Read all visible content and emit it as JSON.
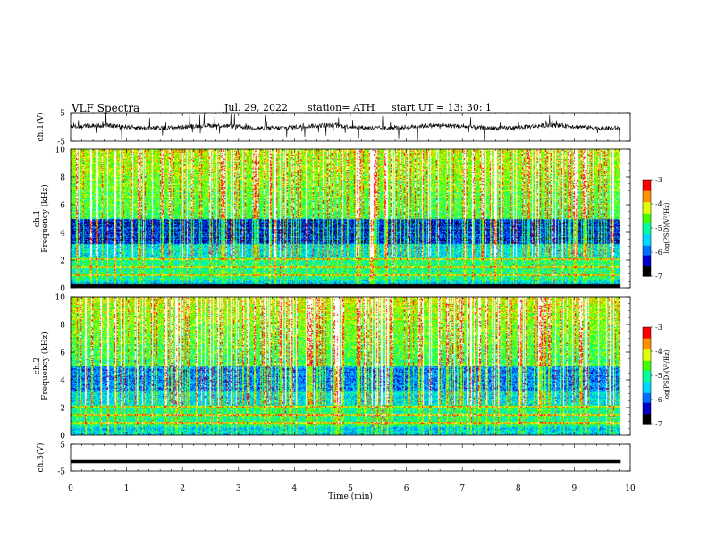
{
  "header": {
    "title": "VLF  Spectra",
    "date": "Jul.  29, 2022",
    "station": "station= ATH",
    "start": "start  UT  =    13: 30: 1"
  },
  "colors": {
    "scale": [
      "#000000",
      "#0000c8",
      "#0070ff",
      "#00d8ff",
      "#00ffa0",
      "#40ff00",
      "#e0ff00",
      "#ff9000",
      "#ff0000",
      "#ffffff"
    ]
  },
  "chart_data": [
    {
      "type": "line",
      "panel": "ch1-waveform",
      "ylabel": "ch.1(V)",
      "ylim": [
        -5,
        5
      ],
      "yticks": [
        "5",
        "-5"
      ],
      "xlim": [
        0,
        10
      ],
      "data_end_min": 9.83,
      "description_series": "raw waveform, noisy around 0 V"
    },
    {
      "type": "heatmap",
      "panel": "ch1-spectrogram",
      "ylabel": "ch.1\nFrequency  (kHz)",
      "ylim": [
        0,
        10
      ],
      "yticks": [
        "0",
        "2",
        "4",
        "6",
        "8",
        "10"
      ],
      "xlim": [
        0,
        10
      ],
      "colorbar": {
        "label": "log(PSD)(V²/Hz)",
        "range": [
          -7,
          -3
        ],
        "ticks": [
          "-3",
          "-4",
          "-5",
          "-6",
          "-7"
        ]
      }
    },
    {
      "type": "heatmap",
      "panel": "ch2-spectrogram",
      "ylabel": "ch.2\nFrequency  (kHz)",
      "ylim": [
        0,
        10
      ],
      "yticks": [
        "0",
        "2",
        "4",
        "6",
        "8",
        "10"
      ],
      "xlim": [
        0,
        10
      ],
      "colorbar": {
        "label": "log(PSD)(V²/Hz)",
        "range": [
          -7,
          -3
        ],
        "ticks": [
          "-3",
          "-4",
          "-5",
          "-6",
          "-7"
        ]
      }
    },
    {
      "type": "line",
      "panel": "ch3-waveform",
      "ylabel": "ch.3(V)",
      "ylim": [
        -5,
        5
      ],
      "yticks": [
        "5",
        "-5"
      ],
      "xlim": [
        0,
        10
      ],
      "value": -1.5
    }
  ],
  "xaxis": {
    "label": "Time  (min)",
    "ticks": [
      "0",
      "1",
      "2",
      "3",
      "4",
      "5",
      "6",
      "7",
      "8",
      "9",
      "10"
    ]
  }
}
